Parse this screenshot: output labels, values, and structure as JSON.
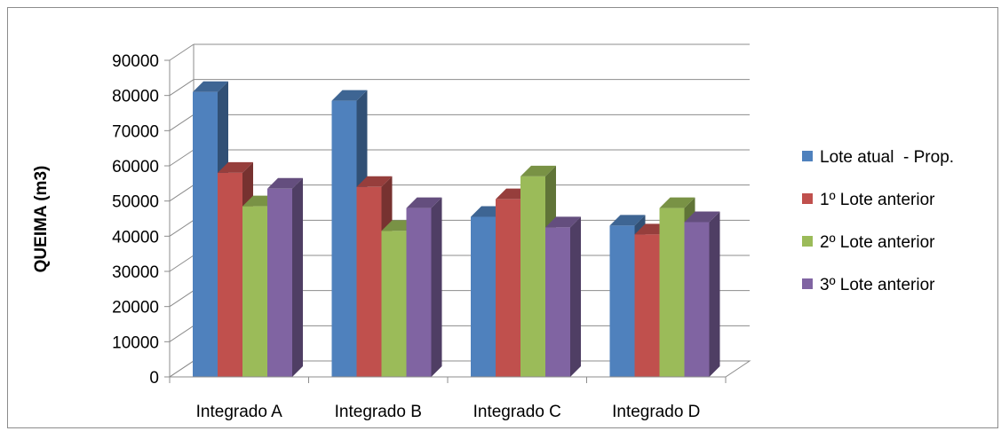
{
  "chart_data": {
    "type": "bar",
    "title": "",
    "xlabel": "",
    "ylabel": "QUEIMA (m3)",
    "ylim": [
      0,
      90000
    ],
    "yticks": [
      0,
      10000,
      20000,
      30000,
      40000,
      50000,
      60000,
      70000,
      80000,
      90000
    ],
    "grid": true,
    "legend_position": "right",
    "categories": [
      "Integrado A",
      "Integrado B",
      "Integrado C",
      "Integrado D"
    ],
    "series": [
      {
        "name": "Lote atual  - Prop.",
        "color": "#4f81bd",
        "values": [
          81000,
          78500,
          45500,
          43000
        ]
      },
      {
        "name": "1º Lote anterior",
        "color": "#c0504d",
        "values": [
          58000,
          54000,
          50500,
          40500
        ]
      },
      {
        "name": "2º Lote anterior",
        "color": "#9bbb59",
        "values": [
          48500,
          41500,
          57000,
          48000
        ]
      },
      {
        "name": "3º Lote anterior",
        "color": "#8064a2",
        "values": [
          53500,
          48000,
          42500,
          44000
        ]
      }
    ]
  }
}
